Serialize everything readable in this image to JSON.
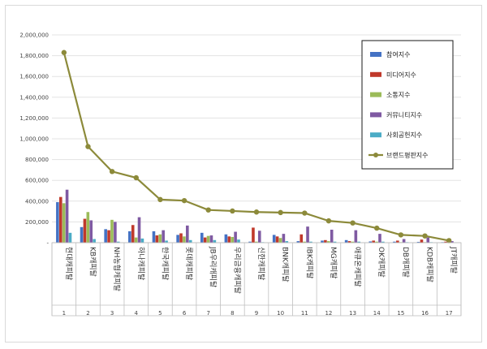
{
  "chart_data": {
    "type": "bar",
    "categories": [
      "현대캐피탈",
      "KB캐피탈",
      "NH농협캐피탈",
      "하나캐피탈",
      "한국캐피탈",
      "롯데캐피탈",
      "JB우리캐피탈",
      "우리금융캐피탈",
      "신한캐피탈",
      "BNK캐피탈",
      "IBK캐피탈",
      "MG캐피탈",
      "애큐온캐피탈",
      "OK캐피탈",
      "DB캐피탈",
      "KDB캐피탈",
      "JT캐피탈"
    ],
    "index_labels": [
      "1",
      "2",
      "3",
      "4",
      "5",
      "6",
      "7",
      "8",
      "9",
      "10",
      "11",
      "12",
      "13",
      "14",
      "15",
      "16",
      "17"
    ],
    "ylim": [
      0,
      2000000
    ],
    "yticks": [
      "-",
      "200,000",
      "400,000",
      "600,000",
      "800,000",
      "1,000,000",
      "1,200,000",
      "1,400,000",
      "1,600,000",
      "1,800,000",
      "2,000,000"
    ],
    "grid": true,
    "legend_position": "right",
    "series": [
      {
        "name": "참여지수",
        "color": "#4472c4",
        "values": [
          390000,
          150000,
          130000,
          110000,
          110000,
          75000,
          95000,
          80000,
          10000,
          75000,
          15000,
          20000,
          25000,
          12000,
          10000,
          8000,
          5000
        ]
      },
      {
        "name": "미디어지수",
        "color": "#c0392b",
        "values": [
          440000,
          230000,
          120000,
          170000,
          70000,
          90000,
          50000,
          60000,
          145000,
          60000,
          80000,
          25000,
          15000,
          20000,
          20000,
          30000,
          10000
        ]
      },
      {
        "name": "소통지수",
        "color": "#9bbb59",
        "values": [
          380000,
          295000,
          220000,
          50000,
          80000,
          60000,
          65000,
          55000,
          10000,
          45000,
          10000,
          15000,
          10000,
          10000,
          5000,
          5000,
          3000
        ]
      },
      {
        "name": "커뮤니티지수",
        "color": "#7f5aa2",
        "values": [
          510000,
          215000,
          200000,
          245000,
          120000,
          165000,
          70000,
          105000,
          115000,
          85000,
          155000,
          125000,
          120000,
          85000,
          35000,
          50000,
          15000
        ]
      },
      {
        "name": "사회공헌지수",
        "color": "#4bacc6",
        "values": [
          95000,
          35000,
          10000,
          40000,
          20000,
          25000,
          25000,
          30000,
          5000,
          15000,
          10000,
          10000,
          10000,
          10000,
          5000,
          5000,
          2000
        ]
      }
    ],
    "line_series": {
      "name": "브랜드평판지수",
      "color": "#8c8a3a",
      "values": [
        1830000,
        925000,
        685000,
        625000,
        415000,
        405000,
        315000,
        305000,
        295000,
        290000,
        285000,
        210000,
        190000,
        140000,
        75000,
        65000,
        20000
      ]
    }
  }
}
